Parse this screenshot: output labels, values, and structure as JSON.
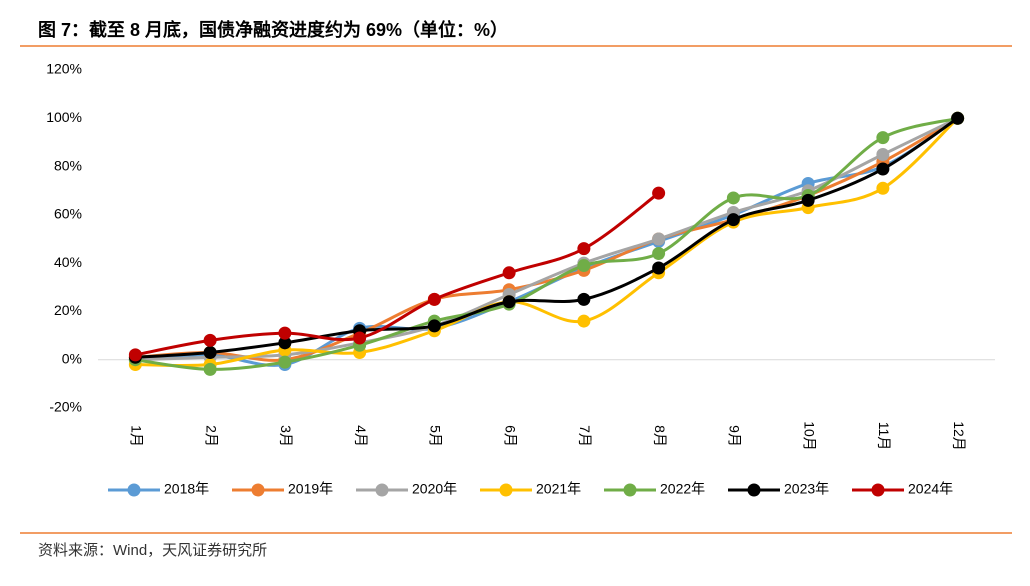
{
  "chart_data": {
    "type": "line",
    "title": "图 7：截至 8 月底，国债净融资进度约为 69%（单位：%）",
    "source": "资料来源：Wind，天风证券研究所",
    "categories": [
      "1月",
      "2月",
      "3月",
      "4月",
      "5月",
      "6月",
      "7月",
      "8月",
      "9月",
      "10月",
      "11月",
      "12月"
    ],
    "ylim": [
      -20,
      120
    ],
    "yticks": [
      {
        "value": -20,
        "label": "-20%"
      },
      {
        "value": 0,
        "label": "0%"
      },
      {
        "value": 20,
        "label": "20%"
      },
      {
        "value": 40,
        "label": "40%"
      },
      {
        "value": 60,
        "label": "60%"
      },
      {
        "value": 80,
        "label": "80%"
      },
      {
        "value": 100,
        "label": "100%"
      },
      {
        "value": 120,
        "label": "120%"
      }
    ],
    "legend": "bottom",
    "series": [
      {
        "name": "2018年",
        "color": "#5b9bd5",
        "values": [
          0,
          2,
          -2,
          13,
          13,
          24,
          38,
          49,
          60,
          73,
          80,
          100
        ]
      },
      {
        "name": "2019年",
        "color": "#ed7d31",
        "values": [
          1,
          3,
          0,
          11,
          25,
          29,
          37,
          50,
          58,
          68,
          82,
          100
        ]
      },
      {
        "name": "2020年",
        "color": "#a5a5a5",
        "values": [
          0,
          1,
          2,
          7,
          14,
          27,
          40,
          50,
          61,
          70,
          85,
          100
        ]
      },
      {
        "name": "2021年",
        "color": "#ffc000",
        "values": [
          -2,
          -2,
          4,
          3,
          12,
          24,
          16,
          36,
          57,
          63,
          71,
          100
        ]
      },
      {
        "name": "2022年",
        "color": "#70ad47",
        "values": [
          0,
          -4,
          -1,
          6,
          16,
          23,
          39,
          44,
          67,
          68,
          92,
          100
        ]
      },
      {
        "name": "2023年",
        "color": "#000000",
        "values": [
          1,
          3,
          7,
          12,
          14,
          24,
          25,
          38,
          58,
          66,
          79,
          100
        ]
      },
      {
        "name": "2024年",
        "color": "#c00000",
        "values": [
          2,
          8,
          11,
          9,
          25,
          36,
          46,
          69,
          null,
          null,
          null,
          null
        ]
      }
    ]
  }
}
